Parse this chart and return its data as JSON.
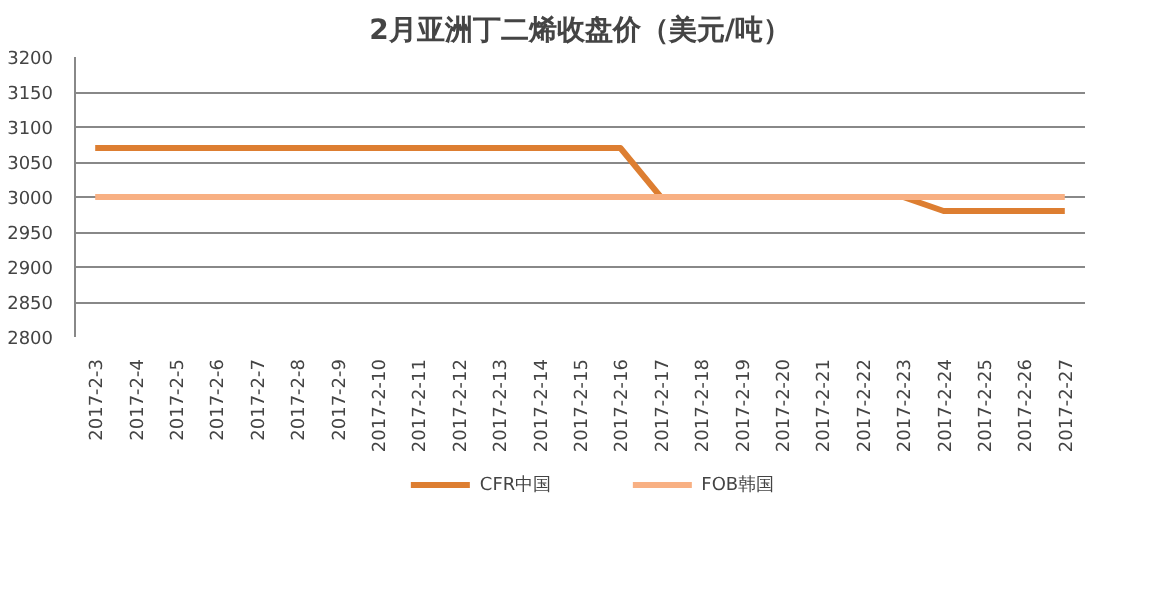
{
  "chart_data": {
    "type": "line",
    "title": "2月亚洲丁二烯收盘价（美元/吨）",
    "categories": [
      "2017-2-3",
      "2017-2-4",
      "2017-2-5",
      "2017-2-6",
      "2017-2-7",
      "2017-2-8",
      "2017-2-9",
      "2017-2-10",
      "2017-2-11",
      "2017-2-12",
      "2017-2-13",
      "2017-2-14",
      "2017-2-15",
      "2017-2-16",
      "2017-2-17",
      "2017-2-18",
      "2017-2-19",
      "2017-2-20",
      "2017-2-21",
      "2017-2-22",
      "2017-2-23",
      "2017-2-24",
      "2017-2-25",
      "2017-2-26",
      "2017-2-27"
    ],
    "series": [
      {
        "name": "CFR中国",
        "color": "#dd7e31",
        "values": [
          3070,
          3070,
          3070,
          3070,
          3070,
          3070,
          3070,
          3070,
          3070,
          3070,
          3070,
          3070,
          3070,
          3070,
          3000,
          3000,
          3000,
          3000,
          3000,
          3000,
          3000,
          2980,
          2980,
          2980,
          2980
        ]
      },
      {
        "name": "FOB韩国",
        "color": "#f8b083",
        "values": [
          3000,
          3000,
          3000,
          3000,
          3000,
          3000,
          3000,
          3000,
          3000,
          3000,
          3000,
          3000,
          3000,
          3000,
          3000,
          3000,
          3000,
          3000,
          3000,
          3000,
          3000,
          3000,
          3000,
          3000,
          3000
        ]
      }
    ],
    "ylim": [
      2800,
      3200
    ],
    "yticks": [
      2800,
      2850,
      2900,
      2950,
      3000,
      3050,
      3100,
      3150,
      3200
    ],
    "grid": "y",
    "legend": "bottom",
    "marker": "none",
    "line_style": "solid"
  }
}
